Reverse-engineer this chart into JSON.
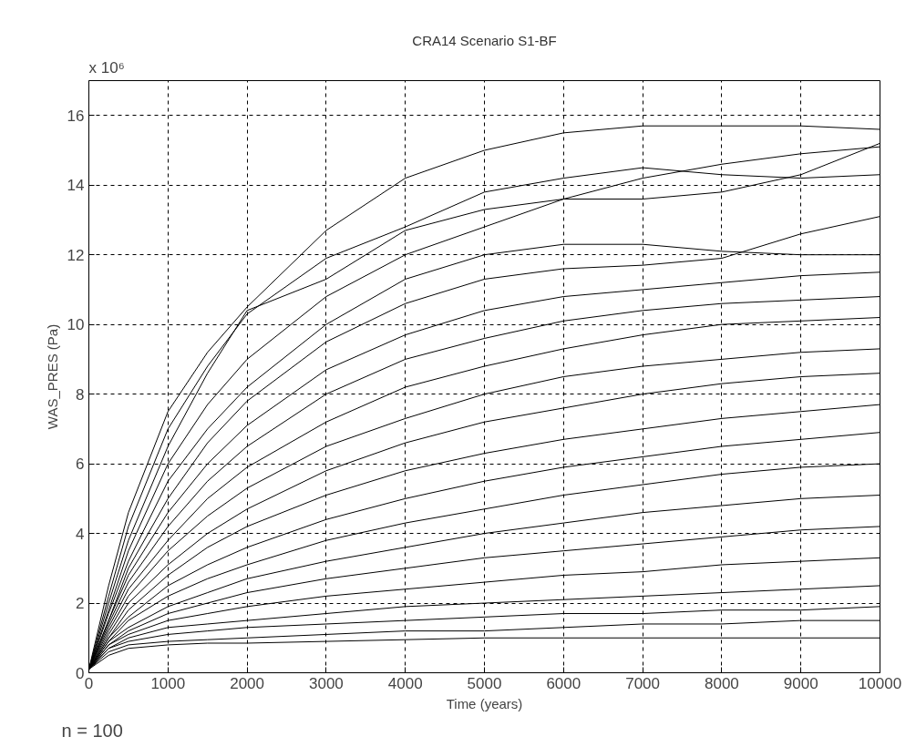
{
  "chart_data": {
    "type": "line",
    "title": "CRA14 Scenario S1-BF",
    "xlabel": "Time (years)",
    "ylabel": "WAS_PRES (Pa)",
    "annotations": [
      "x 10⁶",
      "n = 100"
    ],
    "xlim": [
      0,
      10000
    ],
    "ylim": [
      0,
      17
    ],
    "xticks": [
      0,
      1000,
      2000,
      3000,
      4000,
      5000,
      6000,
      7000,
      8000,
      9000,
      10000
    ],
    "yticks": [
      0,
      2,
      4,
      6,
      8,
      10,
      12,
      14,
      16
    ],
    "grid": true,
    "line_style": "solid",
    "x": [
      0,
      250,
      500,
      1000,
      1500,
      2000,
      3000,
      4000,
      5000,
      6000,
      7000,
      8000,
      9000,
      10000
    ],
    "series": [
      {
        "color": "#000000",
        "values": [
          0.1,
          2.5,
          4.6,
          7.5,
          9.2,
          10.5,
          12.7,
          14.2,
          15.0,
          15.5,
          15.7,
          15.7,
          15.7,
          15.6
        ]
      },
      {
        "color": "#000000",
        "values": [
          0.1,
          2,
          3.8,
          6.5,
          8.6,
          10.4,
          11.3,
          12.7,
          13.3,
          13.6,
          13.6,
          13.8,
          14.3,
          15.2
        ]
      },
      {
        "color": "#000000",
        "values": [
          0.1,
          2.2,
          4.2,
          7,
          8.8,
          10.3,
          11.9,
          12.8,
          13.8,
          14.2,
          14.5,
          14.3,
          14.2,
          14.3
        ]
      },
      {
        "color": "#000000",
        "values": [
          0.1,
          1.8,
          3.5,
          6,
          7.7,
          9,
          10.8,
          12,
          12.8,
          13.6,
          14.2,
          14.6,
          14.9,
          15.1
        ]
      },
      {
        "color": "#000000",
        "values": [
          0.1,
          1.7,
          3.2,
          5.5,
          7,
          8.2,
          10,
          11.3,
          12,
          12.3,
          12.3,
          12.1,
          12,
          12
        ]
      },
      {
        "color": "#000000",
        "values": [
          0.1,
          1.5,
          3,
          5,
          6.6,
          7.8,
          9.5,
          10.6,
          11.3,
          11.6,
          11.7,
          11.9,
          12.6,
          13.1
        ]
      },
      {
        "color": "#000000",
        "values": [
          0.1,
          1.5,
          2.8,
          4.6,
          6,
          7.1,
          8.7,
          9.7,
          10.4,
          10.8,
          11,
          11.2,
          11.4,
          11.5
        ]
      },
      {
        "color": "#000000",
        "values": [
          0.1,
          1.4,
          2.6,
          4.2,
          5.5,
          6.5,
          8,
          9,
          9.6,
          10.1,
          10.4,
          10.6,
          10.7,
          10.8
        ]
      },
      {
        "color": "#000000",
        "values": [
          0.1,
          1.3,
          2.4,
          3.8,
          5,
          5.9,
          7.2,
          8.2,
          8.8,
          9.3,
          9.7,
          10,
          10.1,
          10.2
        ]
      },
      {
        "color": "#000000",
        "values": [
          0.1,
          1.2,
          2.2,
          3.5,
          4.5,
          5.3,
          6.5,
          7.3,
          8,
          8.5,
          8.8,
          9,
          9.2,
          9.3
        ]
      },
      {
        "color": "#000000",
        "values": [
          0.1,
          1.1,
          2,
          3.1,
          4,
          4.7,
          5.8,
          6.6,
          7.2,
          7.6,
          8,
          8.3,
          8.5,
          8.6
        ]
      },
      {
        "color": "#000000",
        "values": [
          0.1,
          1.0,
          1.8,
          2.8,
          3.6,
          4.2,
          5.1,
          5.8,
          6.3,
          6.7,
          7,
          7.3,
          7.5,
          7.7
        ]
      },
      {
        "color": "#000000",
        "values": [
          0.1,
          1.0,
          1.6,
          2.5,
          3.1,
          3.6,
          4.4,
          5,
          5.5,
          5.9,
          6.2,
          6.5,
          6.7,
          6.9
        ]
      },
      {
        "color": "#000000",
        "values": [
          0.1,
          0.9,
          1.5,
          2.2,
          2.7,
          3.1,
          3.8,
          4.3,
          4.7,
          5.1,
          5.4,
          5.7,
          5.9,
          6
        ]
      },
      {
        "color": "#000000",
        "values": [
          0.1,
          0.9,
          1.3,
          1.9,
          2.3,
          2.7,
          3.2,
          3.6,
          4,
          4.3,
          4.6,
          4.8,
          5,
          5.1
        ]
      },
      {
        "color": "#000000",
        "values": [
          0.1,
          0.8,
          1.2,
          1.7,
          2,
          2.3,
          2.7,
          3,
          3.3,
          3.5,
          3.7,
          3.9,
          4.1,
          4.2
        ]
      },
      {
        "color": "#000000",
        "values": [
          0.1,
          0.8,
          1.1,
          1.5,
          1.7,
          1.9,
          2.2,
          2.4,
          2.6,
          2.8,
          2.9,
          3.1,
          3.2,
          3.3
        ]
      },
      {
        "color": "#000000",
        "values": [
          0.1,
          0.7,
          1,
          1.3,
          1.4,
          1.5,
          1.7,
          1.9,
          2,
          2.1,
          2.2,
          2.3,
          2.4,
          2.5
        ]
      },
      {
        "color": "#000000",
        "values": [
          0.1,
          0.7,
          0.9,
          1.1,
          1.2,
          1.3,
          1.4,
          1.5,
          1.6,
          1.7,
          1.7,
          1.8,
          1.8,
          1.9
        ]
      },
      {
        "color": "#000000",
        "values": [
          0.1,
          0.6,
          0.8,
          0.9,
          0.95,
          1,
          1.1,
          1.2,
          1.2,
          1.3,
          1.4,
          1.4,
          1.5,
          1.5
        ]
      },
      {
        "color": "#000000",
        "values": [
          0.1,
          0.5,
          0.7,
          0.8,
          0.85,
          0.85,
          0.9,
          0.95,
          1.0,
          1.0,
          1.0,
          1.0,
          1.0,
          1.0
        ]
      }
    ]
  }
}
